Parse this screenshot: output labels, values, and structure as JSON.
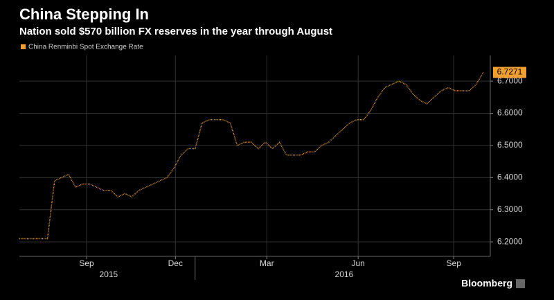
{
  "chart_data": {
    "type": "line",
    "title": "China Stepping In",
    "subtitle": "Nation sold $570 billion FX reserves in the year through August",
    "source": "Bloomberg",
    "series": [
      {
        "name": "China Renminbi Spot Exchange Rate",
        "color": "#f0a030",
        "values": [
          6.21,
          6.21,
          6.21,
          6.21,
          6.21,
          6.39,
          6.4,
          6.41,
          6.37,
          6.38,
          6.38,
          6.37,
          6.36,
          6.36,
          6.34,
          6.35,
          6.34,
          6.36,
          6.37,
          6.38,
          6.39,
          6.4,
          6.43,
          6.47,
          6.49,
          6.49,
          6.57,
          6.58,
          6.58,
          6.58,
          6.57,
          6.5,
          6.51,
          6.51,
          6.49,
          6.51,
          6.49,
          6.51,
          6.47,
          6.47,
          6.47,
          6.48,
          6.48,
          6.5,
          6.51,
          6.53,
          6.55,
          6.57,
          6.58,
          6.58,
          6.61,
          6.65,
          6.68,
          6.69,
          6.7,
          6.69,
          6.66,
          6.64,
          6.63,
          6.65,
          6.67,
          6.68,
          6.67,
          6.67,
          6.67,
          6.69,
          6.7271
        ]
      }
    ],
    "xlim": [
      0,
      67
    ],
    "xticks": [
      {
        "value": 9.56,
        "label": "Sep"
      },
      {
        "value": 22.2,
        "label": "Dec"
      },
      {
        "value": 35.2,
        "label": "Mar"
      },
      {
        "value": 48.2,
        "label": "Jun"
      },
      {
        "value": 61.8,
        "label": "Sep"
      }
    ],
    "xgroups": [
      {
        "value": 12.7,
        "label": "2015"
      },
      {
        "value": 46.2,
        "label": "2016"
      }
    ],
    "xgroup_divider": 25,
    "ylim": [
      6.155,
      6.78
    ],
    "yticks": [
      {
        "value": 6.2,
        "label": "6.2000"
      },
      {
        "value": 6.3,
        "label": "6.3000"
      },
      {
        "value": 6.4,
        "label": "6.4000"
      },
      {
        "value": 6.5,
        "label": "6.5000"
      },
      {
        "value": 6.6,
        "label": "6.6000"
      },
      {
        "value": 6.7,
        "label": "6.7000"
      }
    ],
    "grid": true
  }
}
